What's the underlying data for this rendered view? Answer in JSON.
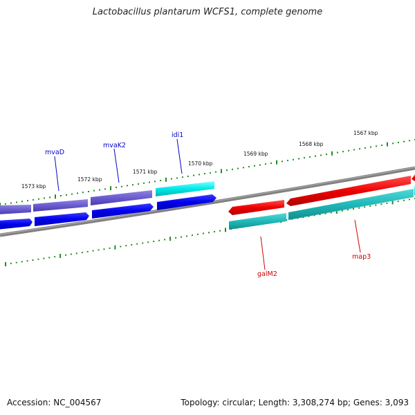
{
  "title": "Lactobacillus plantarum WCFS1, complete genome",
  "footer": {
    "accession": "Accession: NC_004567",
    "summary": "Topology: circular; Length: 3,308,274 bp; Genes: 3,093"
  },
  "colors": {
    "backbone": "#808080",
    "ticks": "#228b22",
    "forward_cds": "#0000ee",
    "reverse_cds": "#ee0000",
    "cds_forward_light": "#7060cc",
    "cds_cyan": "#00e8e8",
    "cds_teal": "#20b8b8"
  },
  "kbp_labels": [
    "1573 kbp",
    "1572 kbp",
    "1571 kbp",
    "1570 kbp",
    "1569 kbp",
    "1568 kbp",
    "1567 kbp"
  ],
  "genes": [
    {
      "name": "mvaD",
      "strand": "forward"
    },
    {
      "name": "mvaK2",
      "strand": "forward"
    },
    {
      "name": "idi1",
      "strand": "forward"
    },
    {
      "name": "galM2",
      "strand": "reverse"
    },
    {
      "name": "map3",
      "strand": "reverse"
    }
  ]
}
